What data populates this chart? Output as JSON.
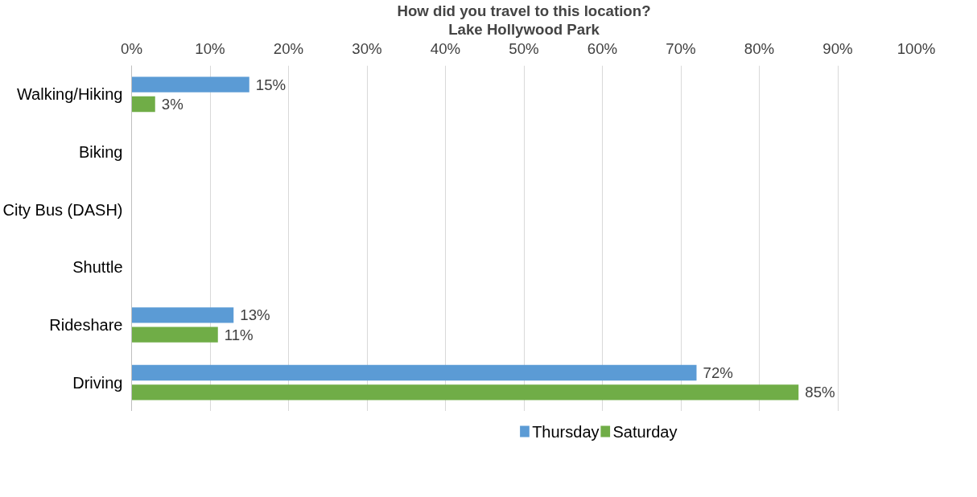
{
  "chart_data": {
    "type": "bar",
    "orientation": "horizontal",
    "title": "How did you travel to this location?",
    "subtitle": "Lake Hollywood Park",
    "categories": [
      "Walking/Hiking",
      "Biking",
      "City Bus (DASH)",
      "Shuttle",
      "Rideshare",
      "Driving"
    ],
    "series": [
      {
        "name": "Thursday",
        "color": "#5b9bd5",
        "values": [
          15,
          null,
          null,
          null,
          13,
          72
        ],
        "value_labels": [
          "15%",
          null,
          null,
          null,
          "13%",
          "72%"
        ]
      },
      {
        "name": "Saturday",
        "color": "#70ad47",
        "values": [
          3,
          null,
          null,
          null,
          11,
          85
        ],
        "value_labels": [
          "3%",
          null,
          null,
          null,
          "11%",
          "85%"
        ]
      }
    ],
    "xlim": [
      0,
      100
    ],
    "xticks": [
      {
        "value": 0,
        "label": "0%"
      },
      {
        "value": 10,
        "label": "10%"
      },
      {
        "value": 20,
        "label": "20%"
      },
      {
        "value": 30,
        "label": "30%"
      },
      {
        "value": 40,
        "label": "40%"
      },
      {
        "value": 50,
        "label": "50%"
      },
      {
        "value": 60,
        "label": "60%"
      },
      {
        "value": 70,
        "label": "70%"
      },
      {
        "value": 80,
        "label": "80%"
      },
      {
        "value": 90,
        "label": "90%"
      },
      {
        "value": 100,
        "label": "100%"
      }
    ],
    "grid": "x",
    "legend": "bottom"
  }
}
